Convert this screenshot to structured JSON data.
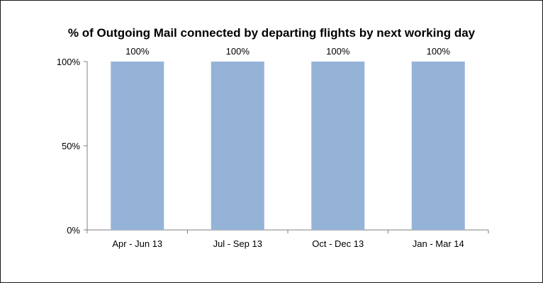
{
  "chart_data": {
    "type": "bar",
    "title": "% of Outgoing Mail connected by departing flights by next working day",
    "categories": [
      "Apr - Jun 13",
      "Jul - Sep 13",
      "Oct - Dec 13",
      "Jan - Mar 14"
    ],
    "values": [
      100,
      100,
      100,
      100
    ],
    "data_labels": [
      "100%",
      "100%",
      "100%",
      "100%"
    ],
    "xlabel": "",
    "ylabel": "",
    "ylim": [
      0,
      100
    ],
    "yticks": [
      0,
      50,
      100
    ],
    "ytick_labels": [
      "0%",
      "50%",
      "100%"
    ],
    "grid": false,
    "legend": "none",
    "bar_color": "#95b3d7"
  }
}
